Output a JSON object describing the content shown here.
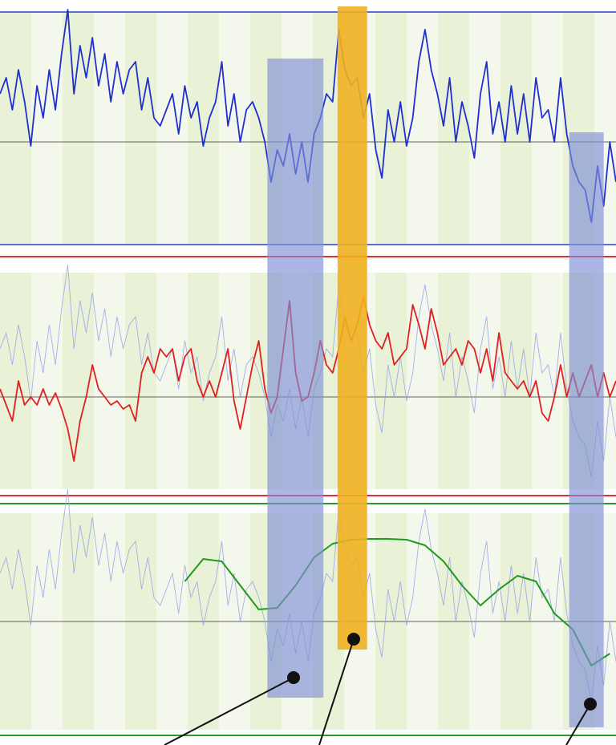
{
  "chart_data": [
    {
      "type": "line",
      "xlim": [
        0,
        100
      ],
      "ylim": [
        -1.28,
        1.62
      ],
      "border_color": "#5a6fd6",
      "series": [
        {
          "color": "#1f2fd0",
          "values": [
            0.6,
            0.8,
            0.4,
            0.9,
            0.5,
            -0.05,
            0.7,
            0.3,
            0.9,
            0.4,
            1.1,
            1.65,
            0.6,
            1.2,
            0.8,
            1.3,
            0.7,
            1.1,
            0.5,
            1.0,
            0.6,
            0.9,
            1.0,
            0.4,
            0.8,
            0.3,
            0.2,
            0.4,
            0.6,
            0.1,
            0.7,
            0.3,
            0.5,
            -0.05,
            0.3,
            0.5,
            1.0,
            0.2,
            0.6,
            0.0,
            0.4,
            0.5,
            0.3,
            0.0,
            -0.5,
            -0.1,
            -0.3,
            0.1,
            -0.4,
            0.0,
            -0.5,
            0.1,
            0.3,
            0.6,
            0.5,
            1.4,
            0.9,
            0.7,
            0.8,
            0.3,
            0.6,
            -0.1,
            -0.45,
            0.4,
            0.0,
            0.5,
            -0.05,
            0.3,
            1.0,
            1.4,
            0.9,
            0.6,
            0.2,
            0.8,
            0.0,
            0.5,
            0.2,
            -0.2,
            0.6,
            1.0,
            0.1,
            0.5,
            0.0,
            0.7,
            0.1,
            0.6,
            0.0,
            0.8,
            0.3,
            0.4,
            0.0,
            0.8,
            0.1,
            -0.3,
            -0.5,
            -0.6,
            -1.0,
            -0.3,
            -0.8,
            0.0,
            -0.5
          ]
        }
      ]
    },
    {
      "type": "line",
      "xlim": [
        0,
        100
      ],
      "ylim": [
        -1.15,
        1.55
      ],
      "border_color": "#e03030",
      "series": [
        {
          "color": "#e02020",
          "values": [
            0.1,
            -0.1,
            -0.3,
            0.2,
            -0.1,
            0.0,
            -0.1,
            0.1,
            -0.1,
            0.05,
            -0.15,
            -0.4,
            -0.8,
            -0.3,
            0.0,
            0.4,
            0.1,
            0.0,
            -0.1,
            -0.05,
            -0.15,
            -0.1,
            -0.3,
            0.3,
            0.5,
            0.3,
            0.6,
            0.5,
            0.6,
            0.2,
            0.5,
            0.6,
            0.2,
            0.0,
            0.2,
            0.0,
            0.3,
            0.6,
            -0.05,
            -0.4,
            0.0,
            0.4,
            0.7,
            0.1,
            -0.2,
            0.0,
            0.6,
            1.2,
            0.3,
            -0.05,
            0.0,
            0.3,
            0.7,
            0.4,
            0.3,
            0.6,
            1.0,
            0.7,
            0.9,
            1.25,
            0.9,
            0.7,
            0.6,
            0.8,
            0.4,
            0.5,
            0.6,
            1.15,
            0.9,
            0.6,
            1.1,
            0.8,
            0.4,
            0.5,
            0.6,
            0.4,
            0.7,
            0.6,
            0.3,
            0.6,
            0.2,
            0.8,
            0.3,
            0.2,
            0.1,
            0.2,
            0.0,
            0.2,
            -0.2,
            -0.3,
            0.0,
            0.4,
            0.0,
            0.3,
            0.0,
            0.2,
            0.4,
            0.0,
            0.3,
            0.0,
            0.2
          ]
        }
      ]
    },
    {
      "type": "line",
      "xlim": [
        0,
        100
      ],
      "ylim": [
        -1.35,
        1.35
      ],
      "border_color": "#2a9a2a",
      "series": [
        {
          "color": "#1f9a1f",
          "x": [
            30,
            33,
            36,
            39,
            42,
            45,
            48,
            51,
            54,
            57,
            60,
            63,
            66,
            69,
            72,
            75,
            78,
            81,
            84,
            87,
            90,
            93,
            96,
            99
          ],
          "values": [
            0.5,
            0.78,
            0.75,
            0.45,
            0.15,
            0.17,
            0.45,
            0.8,
            0.97,
            1.02,
            1.03,
            1.03,
            1.02,
            0.95,
            0.75,
            0.45,
            0.2,
            0.4,
            0.57,
            0.5,
            0.1,
            -0.1,
            -0.55,
            -0.4
          ]
        }
      ]
    }
  ],
  "highlights": [
    {
      "x": [
        43.4,
        52.5
      ],
      "color": "#7f8fd6"
    },
    {
      "x": [
        54.8,
        59.6
      ],
      "color": "#f0b020"
    },
    {
      "x": [
        92.4,
        98.0
      ],
      "color": "#7f8fd6"
    }
  ]
}
